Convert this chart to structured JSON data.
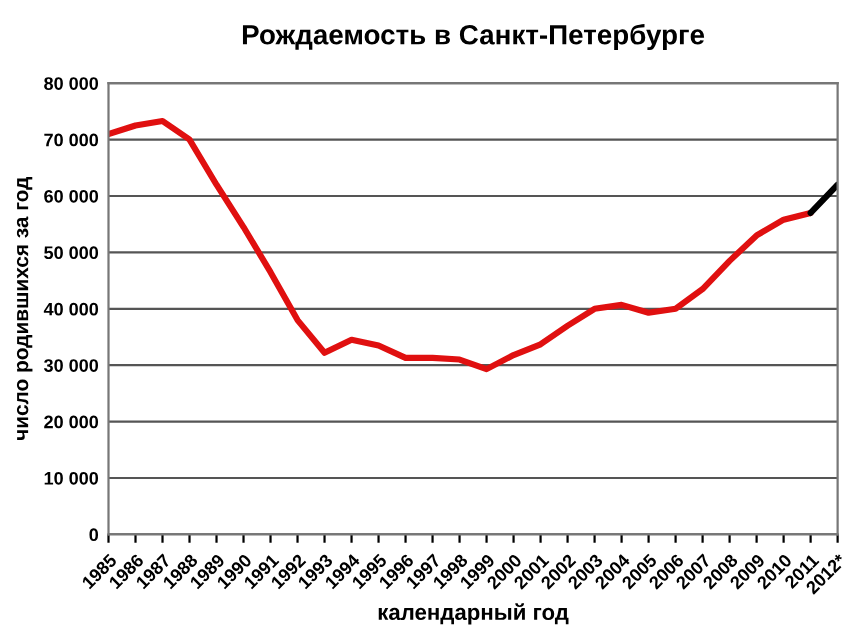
{
  "chart_data": {
    "type": "line",
    "title": "Рождаемость в Санкт-Петербурге",
    "xlabel": "календарный год",
    "ylabel": "число родившихся за год",
    "categories": [
      "1985",
      "1986",
      "1987",
      "1988",
      "1989",
      "1990",
      "1991",
      "1992",
      "1993",
      "1994",
      "1995",
      "1996",
      "1997",
      "1998",
      "1999",
      "2000",
      "2001",
      "2002",
      "2003",
      "2004",
      "2005",
      "2006",
      "2007",
      "2008",
      "2009",
      "2010",
      "2011",
      "2012*"
    ],
    "series": [
      {
        "color": "#e01010",
        "values": [
          71000,
          72500,
          73300,
          70000,
          62000,
          54500,
          46500,
          38000,
          32200,
          34500,
          33500,
          31300,
          31300,
          31000,
          29300,
          31800,
          33700,
          37000,
          40000,
          40700,
          39300,
          40000,
          43500,
          48500,
          53000,
          55800,
          57000,
          null
        ]
      },
      {
        "color": "#000000",
        "values": [
          null,
          null,
          null,
          null,
          null,
          null,
          null,
          null,
          null,
          null,
          null,
          null,
          null,
          null,
          null,
          null,
          null,
          null,
          null,
          null,
          null,
          null,
          null,
          null,
          null,
          null,
          57000,
          62000
        ]
      }
    ],
    "ylim": [
      0,
      80000
    ],
    "yticks": [
      0,
      {
        "value": 10000,
        "label": "10 000"
      },
      {
        "value": 20000,
        "label": "20 000"
      },
      {
        "value": 30000,
        "label": "30 000"
      },
      {
        "value": 40000,
        "label": "40 000"
      },
      {
        "value": 50000,
        "label": "50 000"
      },
      {
        "value": 60000,
        "label": "60 000"
      },
      {
        "value": 70000,
        "label": "70 000"
      },
      {
        "value": 80000,
        "label": "80 000"
      }
    ],
    "grid": "y",
    "marker": "none",
    "line_style": "solid"
  }
}
